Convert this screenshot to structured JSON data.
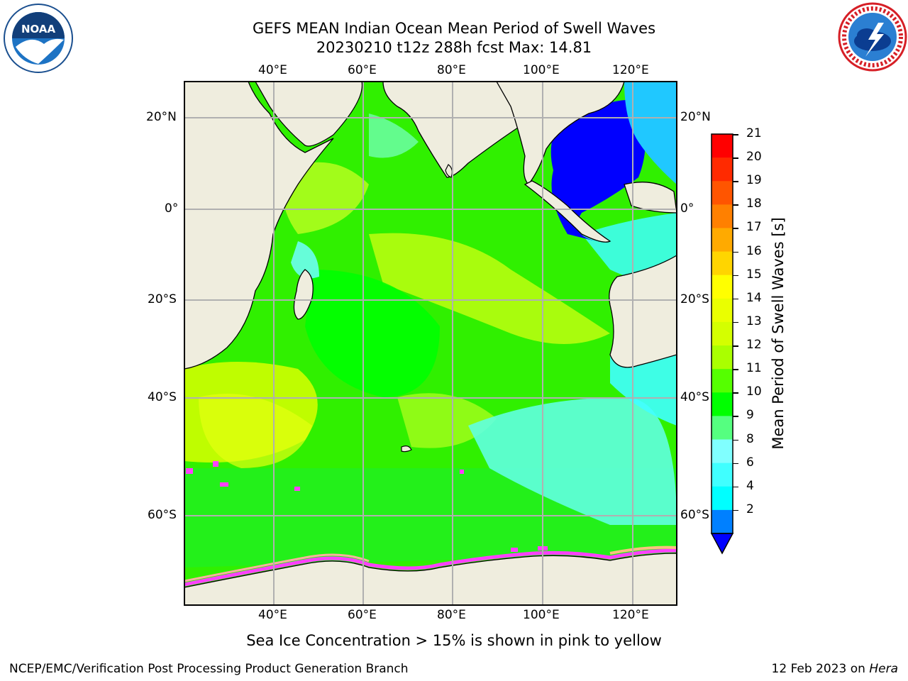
{
  "header": {
    "title_line1": "GEFS MEAN Indian Ocean Mean Period of Swell Waves",
    "title_line2": "20230210 t12z 288h fcst   Max: 14.81"
  },
  "logos": {
    "left": {
      "icon": "noaa-logo",
      "text": "NOAA",
      "ring_text": "NATIONAL OCEANIC AND ATMOSPHERIC ADMINISTRATION · U.S. DEPARTMENT OF COMMERCE"
    },
    "right": {
      "icon": "nws-logo",
      "ring_text": "NATIONAL WEATHER SERVICE"
    }
  },
  "map": {
    "lon_labels_top": [
      "40°E",
      "60°E",
      "80°E",
      "100°E",
      "120°E"
    ],
    "lon_labels_bottom": [
      "40°E",
      "60°E",
      "80°E",
      "100°E",
      "120°E"
    ],
    "lat_labels_left": [
      "20°N",
      "0°",
      "20°S",
      "40°S",
      "60°S"
    ],
    "lat_labels_right": [
      "20°N",
      "0°",
      "20°S",
      "40°S",
      "60°S"
    ],
    "colors": {
      "land": "#efedde",
      "grid": "#b0b0b0",
      "ice": "#ff40ff"
    }
  },
  "colorbar": {
    "label": "Mean Period of Swell Waves [s]",
    "ticks": [
      "21",
      "20",
      "19",
      "18",
      "17",
      "16",
      "15",
      "14",
      "13",
      "12",
      "11",
      "10",
      "9",
      "8",
      "6",
      "4",
      "2"
    ],
    "colors": [
      "#ff0000",
      "#ff2a00",
      "#ff5500",
      "#ff8000",
      "#ffaa00",
      "#ffd500",
      "#ffff00",
      "#eaff00",
      "#d4ff00",
      "#aaff00",
      "#55ff00",
      "#00ff00",
      "#55ff80",
      "#80ffff",
      "#40ffff",
      "#00ffff",
      "#0080ff"
    ],
    "under_color": "#0000ff"
  },
  "footer": {
    "ice_note": "Sea Ice Concentration > 15% is shown in pink to yellow",
    "left": "NCEP/EMC/Verification Post Processing Product Generation Branch",
    "right_date": "12 Feb 2023 on ",
    "right_machine": "Hera"
  }
}
